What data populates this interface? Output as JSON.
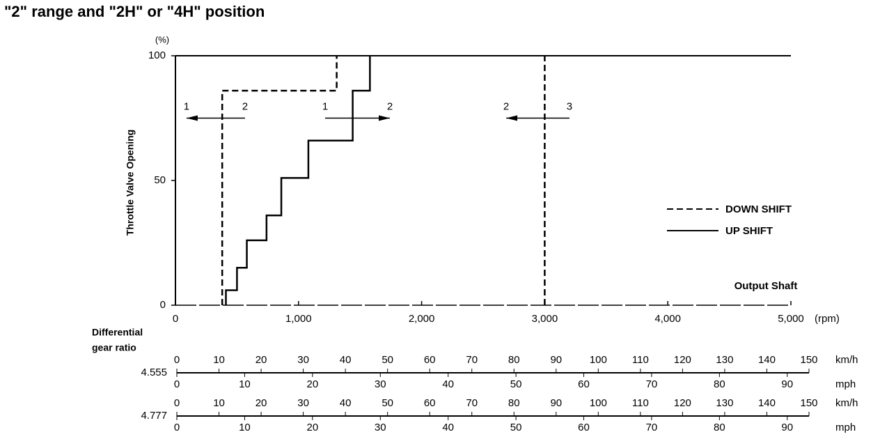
{
  "chart_data": {
    "type": "line",
    "title": "\"2\" range and \"2H\" or \"4H\" position",
    "y_label": "Throttle Valve Opening",
    "y_unit": "(%)",
    "x_label": "Output Shaft",
    "x_unit": "(rpm)",
    "xlim": [
      0,
      5000
    ],
    "ylim": [
      0,
      100
    ],
    "xticks": [
      0,
      {
        "value": 1000,
        "label": "1,000"
      },
      {
        "value": 2000,
        "label": "2,000"
      },
      {
        "value": 3000,
        "label": "3,000"
      },
      {
        "value": 4000,
        "label": "4,000"
      },
      {
        "value": 5000,
        "label": "5,000"
      }
    ],
    "yticks": [
      0,
      50,
      100
    ],
    "legend": "right",
    "series": [
      {
        "name": "DOWN SHIFT",
        "color": "#000000",
        "dash": true,
        "x": [
          380,
          380,
          1310,
          1310,
          3000,
          3000,
          3000
        ],
        "values": [
          0,
          86,
          86,
          100,
          null,
          0,
          100
        ]
      },
      {
        "name": "UP SHIFT",
        "color": "#000000",
        "dash": false,
        "x": [
          410,
          410,
          500,
          500,
          580,
          580,
          740,
          740,
          860,
          860,
          1080,
          1080,
          1440,
          1440,
          1580,
          1580
        ],
        "values": [
          0,
          6,
          6,
          15,
          15,
          26,
          26,
          36,
          36,
          51,
          51,
          66,
          66,
          86,
          86,
          100
        ]
      }
    ],
    "shift_arrows": [
      {
        "left": "1",
        "right": "2",
        "x_start": 565,
        "x_end": 90,
        "y": 75
      },
      {
        "left": "1",
        "right": "2",
        "x_start": 1216,
        "x_end": 1742,
        "y": 75
      },
      {
        "left": "2",
        "right": "3",
        "x_start": 3201,
        "x_end": 2687,
        "y": 75
      }
    ],
    "speed_scales": {
      "label_lines": [
        "Differential",
        "gear ratio"
      ],
      "rows": [
        {
          "ratio": "4.555",
          "kmh_unit": "km/h",
          "mph_unit": "mph",
          "kmh_ticks": [
            0,
            10,
            20,
            30,
            40,
            50,
            60,
            70,
            80,
            90,
            100,
            110,
            120,
            130,
            140,
            150
          ],
          "mph_ticks": [
            0,
            10,
            20,
            30,
            40,
            50,
            60,
            70,
            80,
            90
          ]
        },
        {
          "ratio": "4.777",
          "kmh_unit": "km/h",
          "mph_unit": "mph",
          "kmh_ticks": [
            0,
            10,
            20,
            30,
            40,
            50,
            60,
            70,
            80,
            90,
            100,
            110,
            120,
            130,
            140,
            150
          ],
          "mph_ticks": [
            0,
            10,
            20,
            30,
            40,
            50,
            60,
            70,
            80,
            90
          ]
        }
      ]
    }
  }
}
